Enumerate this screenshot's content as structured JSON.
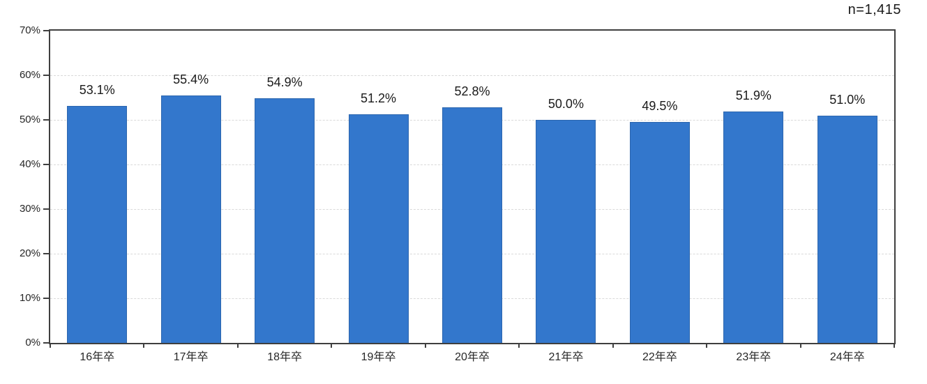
{
  "chart_data": {
    "type": "bar",
    "title": "",
    "sample_size_label": "n=1,415",
    "categories": [
      "16年卒",
      "17年卒",
      "18年卒",
      "19年卒",
      "20年卒",
      "21年卒",
      "22年卒",
      "23年卒",
      "24年卒"
    ],
    "values": [
      53.1,
      55.4,
      54.9,
      51.2,
      52.8,
      50.0,
      49.5,
      51.9,
      51.0
    ],
    "value_labels": [
      "53.1%",
      "55.4%",
      "54.9%",
      "51.2%",
      "52.8%",
      "50.0%",
      "49.5%",
      "51.9%",
      "51.0%"
    ],
    "xlabel": "",
    "ylabel": "",
    "ylim": [
      0,
      70
    ],
    "ytick_values": [
      0,
      10,
      20,
      30,
      40,
      50,
      60,
      70
    ],
    "ytick_labels": [
      "0%",
      "10%",
      "20%",
      "30%",
      "40%",
      "50%",
      "60%",
      "70%"
    ],
    "grid": "horizontal-dashed",
    "legend": "none",
    "colors": {
      "bar_fill": "#3377cc",
      "bar_border": "#2c66ae",
      "gridline": "#d9d9d9",
      "axis": "#3f3f3f",
      "text": "#262626"
    }
  }
}
